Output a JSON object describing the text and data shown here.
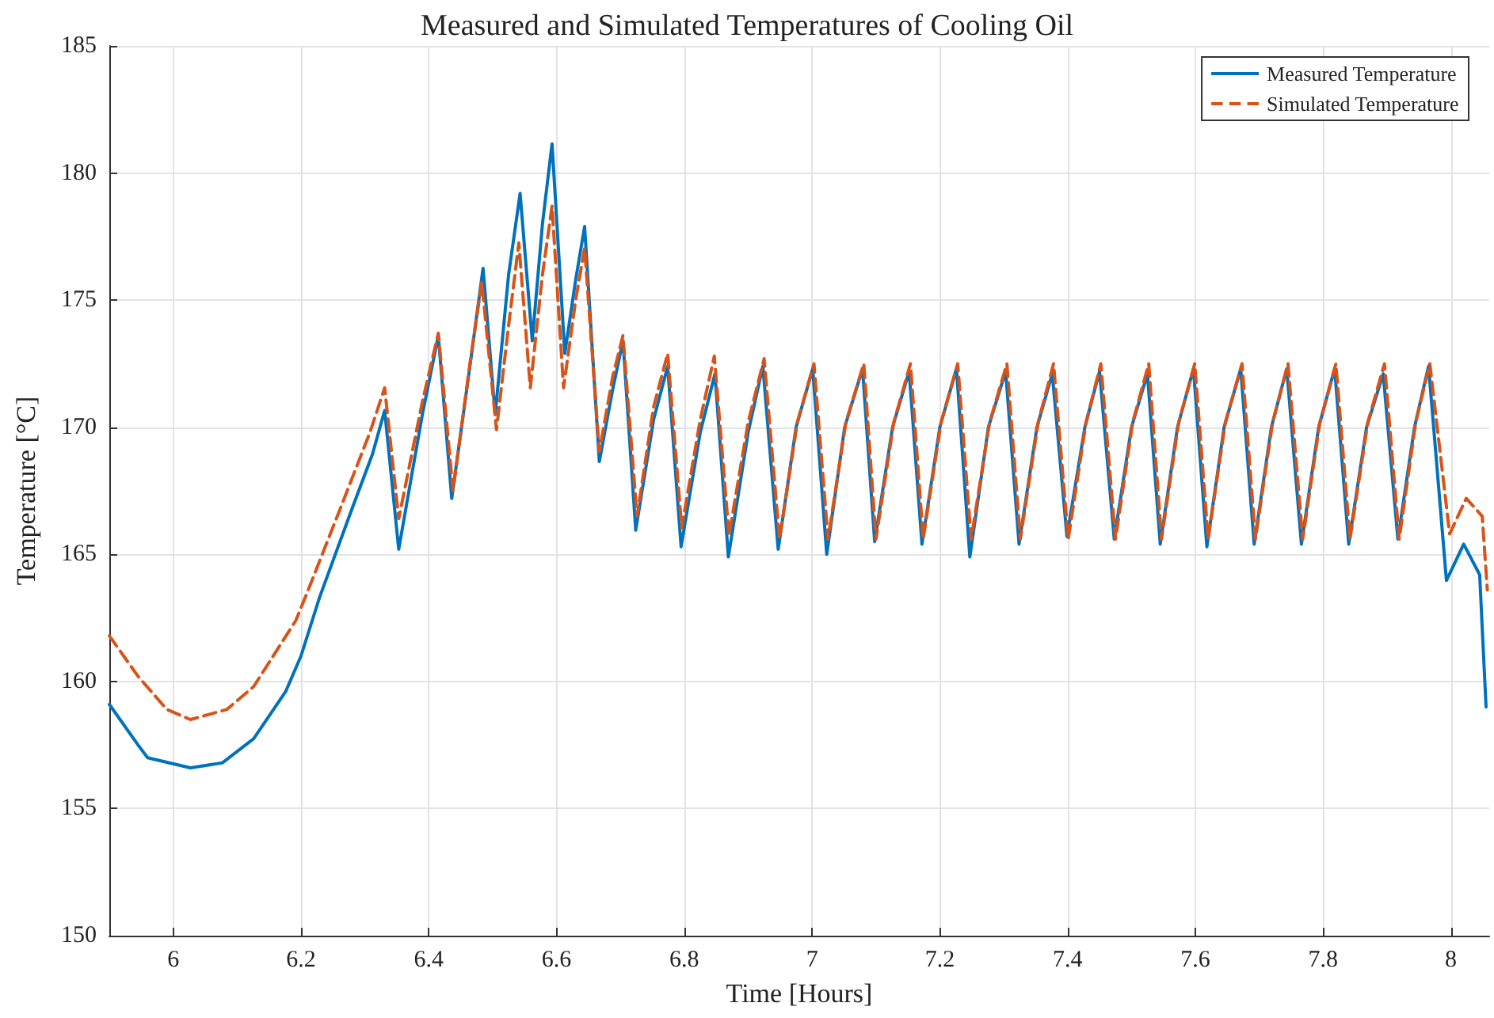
{
  "chart_data": {
    "type": "line",
    "title": "Measured and Simulated Temperatures of Cooling Oil",
    "xlabel": "Time [Hours]",
    "ylabel": "Temperature [°C]",
    "xlim": [
      5.9,
      8.06
    ],
    "ylim": [
      150,
      185
    ],
    "xticks": [
      6,
      6.2,
      6.4,
      6.6,
      6.8,
      7,
      7.2,
      7.4,
      7.6,
      7.8,
      8
    ],
    "yticks": [
      150,
      155,
      160,
      165,
      170,
      175,
      180,
      185
    ],
    "grid": true,
    "legend": "top right",
    "marker": "none",
    "series": [
      {
        "name": "Measured Temperature",
        "color": "#0072bd",
        "line_style": "solid",
        "x": [
          5.9,
          5.945,
          5.96,
          6.027,
          6.077,
          6.126,
          6.176,
          6.2,
          6.229,
          6.28,
          6.312,
          6.331,
          6.353,
          6.39,
          6.415,
          6.436,
          6.465,
          6.485,
          6.504,
          6.525,
          6.543,
          6.562,
          6.578,
          6.593,
          6.613,
          6.63,
          6.644,
          6.667,
          6.688,
          6.704,
          6.724,
          6.752,
          6.774,
          6.795,
          6.825,
          6.848,
          6.869,
          6.9,
          6.923,
          6.947,
          6.975,
          7.001,
          7.023,
          7.051,
          7.079,
          7.098,
          7.126,
          7.152,
          7.172,
          7.2,
          7.226,
          7.247,
          7.276,
          7.303,
          7.324,
          7.352,
          7.376,
          7.399,
          7.427,
          7.45,
          7.473,
          7.5,
          7.525,
          7.545,
          7.572,
          7.597,
          7.618,
          7.645,
          7.671,
          7.692,
          7.719,
          7.743,
          7.766,
          7.793,
          7.818,
          7.84,
          7.868,
          7.894,
          7.917,
          7.943,
          7.965,
          7.993,
          8.02,
          8.045,
          8.055
        ],
        "values": [
          159.1,
          157.5,
          157.0,
          156.6,
          156.8,
          157.75,
          159.6,
          161.0,
          163.3,
          166.8,
          168.95,
          170.66,
          165.2,
          170.5,
          173.6,
          167.2,
          172.5,
          176.25,
          170.5,
          176.0,
          179.2,
          173.4,
          178.0,
          181.15,
          172.9,
          175.8,
          177.9,
          168.65,
          171.5,
          173.4,
          165.95,
          170.3,
          172.4,
          165.3,
          169.8,
          172.1,
          164.9,
          169.8,
          172.4,
          165.2,
          170.0,
          172.3,
          165.0,
          170.0,
          172.3,
          165.5,
          170.0,
          172.2,
          165.4,
          170.0,
          172.3,
          164.9,
          170.0,
          172.2,
          165.4,
          170.0,
          172.1,
          165.7,
          170.0,
          172.2,
          165.6,
          170.0,
          172.1,
          165.4,
          170.0,
          172.3,
          165.3,
          170.0,
          172.3,
          165.4,
          170.0,
          172.3,
          165.4,
          170.0,
          172.3,
          165.4,
          170.0,
          172.1,
          165.6,
          170.0,
          172.4,
          163.97,
          165.4,
          164.2,
          159.0
        ]
      },
      {
        "name": "Simulated Temperature",
        "color": "#d95319",
        "line_style": "dashed",
        "x": [
          5.9,
          5.945,
          5.99,
          6.027,
          6.084,
          6.126,
          6.192,
          6.209,
          6.26,
          6.308,
          6.331,
          6.353,
          6.39,
          6.415,
          6.438,
          6.465,
          6.483,
          6.506,
          6.525,
          6.541,
          6.559,
          6.578,
          6.593,
          6.611,
          6.63,
          6.644,
          6.667,
          6.688,
          6.704,
          6.726,
          6.752,
          6.774,
          6.796,
          6.825,
          6.847,
          6.87,
          6.9,
          6.925,
          6.949,
          6.977,
          7.003,
          7.025,
          7.053,
          7.081,
          7.1,
          7.128,
          7.154,
          7.174,
          7.202,
          7.228,
          7.249,
          7.278,
          7.305,
          7.326,
          7.354,
          7.378,
          7.401,
          7.429,
          7.452,
          7.475,
          7.502,
          7.527,
          7.547,
          7.574,
          7.599,
          7.62,
          7.647,
          7.673,
          7.694,
          7.721,
          7.745,
          7.768,
          7.795,
          7.82,
          7.842,
          7.87,
          7.896,
          7.919,
          7.945,
          7.967,
          7.998,
          8.024,
          8.049,
          8.057
        ],
        "values": [
          161.8,
          160.2,
          158.9,
          158.5,
          158.9,
          159.8,
          162.4,
          163.45,
          166.7,
          169.8,
          171.55,
          166.4,
          171.0,
          173.7,
          167.5,
          172.6,
          175.7,
          169.9,
          174.0,
          177.25,
          171.55,
          176.0,
          178.7,
          171.55,
          175.0,
          177.05,
          169.05,
          172.0,
          173.6,
          166.5,
          170.8,
          172.9,
          166.05,
          170.3,
          172.8,
          165.75,
          170.2,
          172.7,
          165.6,
          170.2,
          172.5,
          165.6,
          170.2,
          172.5,
          165.6,
          170.2,
          172.5,
          165.6,
          170.2,
          172.5,
          165.6,
          170.2,
          172.5,
          165.6,
          170.2,
          172.5,
          165.6,
          170.2,
          172.5,
          165.6,
          170.2,
          172.5,
          165.6,
          170.2,
          172.5,
          165.6,
          170.2,
          172.5,
          165.6,
          170.2,
          172.5,
          165.6,
          170.2,
          172.5,
          165.6,
          170.2,
          172.5,
          165.6,
          170.2,
          172.5,
          165.8,
          167.2,
          166.5,
          163.6
        ]
      }
    ]
  }
}
